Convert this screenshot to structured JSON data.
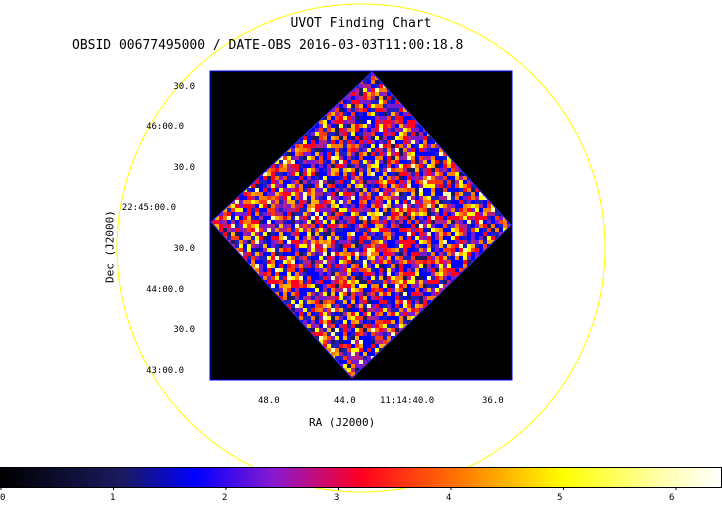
{
  "title": "UVOT Finding Chart",
  "subtitle": "OBSID 00677495000 / DATE-OBS 2016-03-03T11:00:18.8",
  "axes": {
    "xlabel": "RA (J2000)",
    "ylabel": "Dec (J2000)",
    "x_ticks": [
      "48.0",
      "44.0",
      "11:14:40.0",
      "36.0"
    ],
    "y_ticks": [
      "30.0",
      "46:00.0",
      "30.0",
      "22:45:00.0",
      "30.0",
      "44:00.0",
      "30.0",
      "43:00.0"
    ]
  },
  "colorbar": {
    "ticks": [
      "0",
      "1",
      "2",
      "3",
      "4",
      "5",
      "6"
    ],
    "min": 0,
    "max": 6.4
  },
  "colors": {
    "circle": "#ffff00",
    "frame": "#0000ff",
    "background": "#000000"
  }
}
